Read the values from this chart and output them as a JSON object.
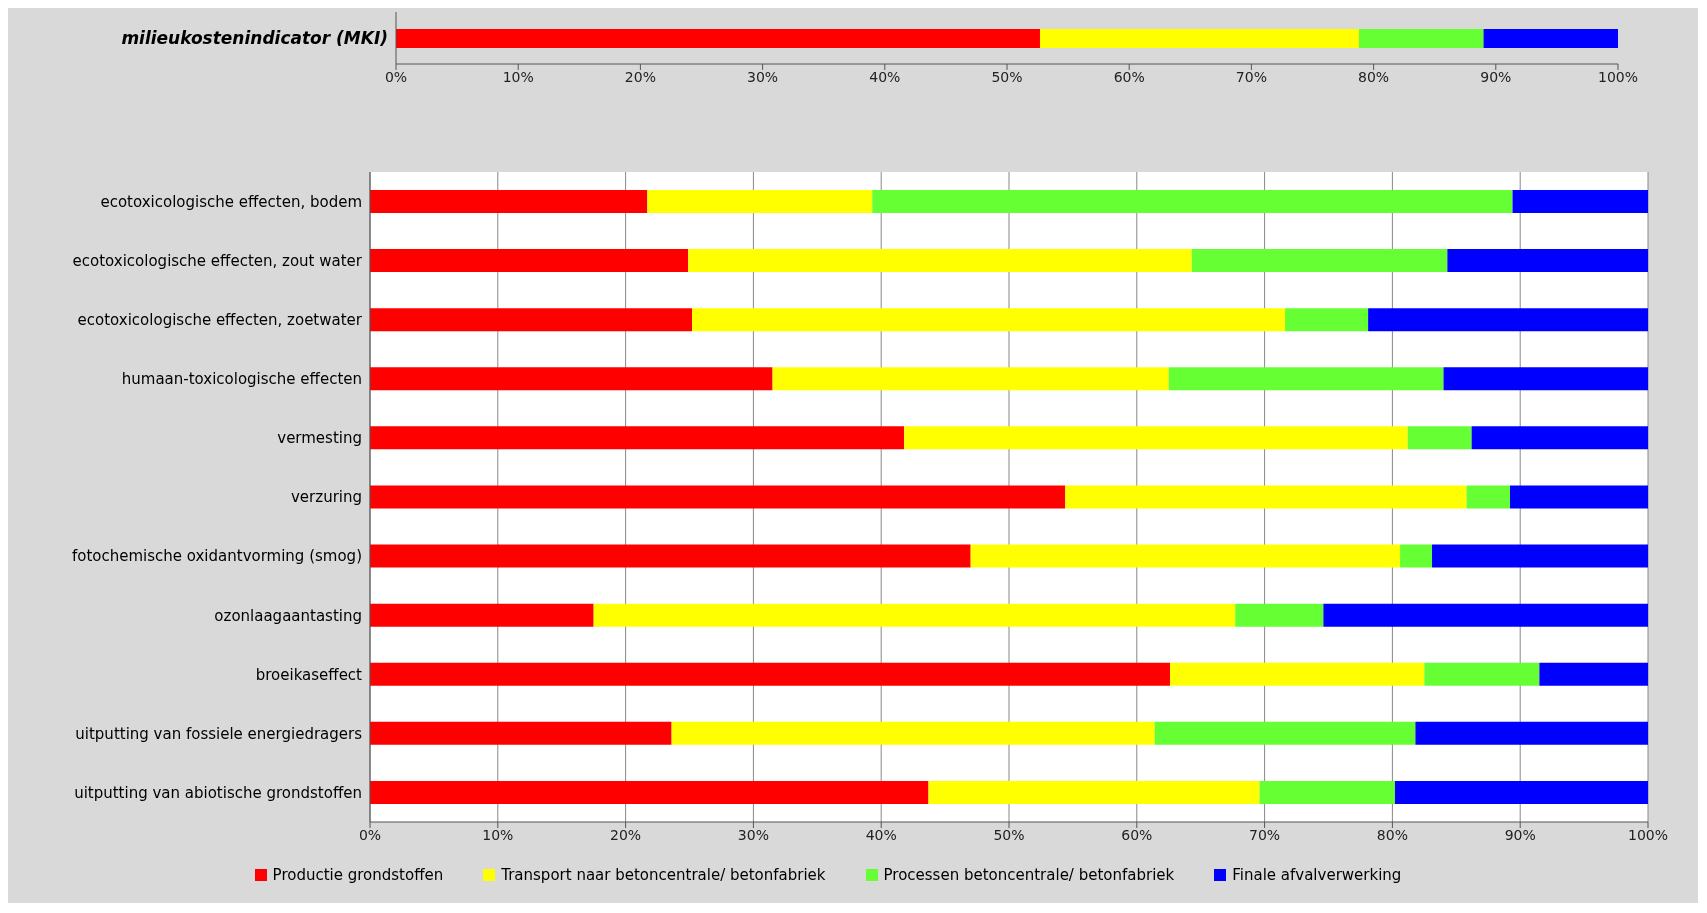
{
  "chart_data": [
    {
      "type": "bar",
      "orientation": "horizontal",
      "stacked": true,
      "categories": [
        "milieukostenindicator (MKI)"
      ],
      "series": [
        {
          "color": "#ff0000",
          "values": [
            52.7
          ]
        },
        {
          "color": "#ffff00",
          "values": [
            26.1
          ]
        },
        {
          "color": "#66ff33",
          "values": [
            10.2
          ]
        },
        {
          "color": "#0000ff",
          "values": [
            11.0
          ]
        }
      ],
      "xlim": [
        0,
        100
      ],
      "xticks": [
        {
          "value": 0,
          "label": "0%"
        },
        {
          "value": 10,
          "label": "10%"
        },
        {
          "value": 20,
          "label": "20%"
        },
        {
          "value": 30,
          "label": "30%"
        },
        {
          "value": 40,
          "label": "40%"
        },
        {
          "value": 50,
          "label": "50%"
        },
        {
          "value": 60,
          "label": "60%"
        },
        {
          "value": 70,
          "label": "70%"
        },
        {
          "value": 80,
          "label": "80%"
        },
        {
          "value": 90,
          "label": "90%"
        },
        {
          "value": 100,
          "label": "100%"
        }
      ],
      "grid": false,
      "legend": false
    },
    {
      "type": "bar",
      "orientation": "horizontal",
      "stacked": true,
      "categories": [
        "ecotoxicologische effecten, bodem",
        "ecotoxicologische effecten, zout water",
        "ecotoxicologische effecten, zoetwater",
        "humaan-toxicologische effecten",
        "vermesting",
        "verzuring",
        "fotochemische oxidantvorming (smog)",
        "ozonlaagaantasting",
        "broeikaseffect",
        "uitputting van fossiele energiedragers",
        "uitputting van abiotische grondstoffen"
      ],
      "series": [
        {
          "name": "Productie grondstoffen",
          "color": "#ff0000",
          "values": [
            21.7,
            24.9,
            25.2,
            31.5,
            41.8,
            54.4,
            47.0,
            17.5,
            62.6,
            23.6,
            43.7
          ]
        },
        {
          "name": "Transport naar betoncentrale/ betonfabriek",
          "color": "#ffff00",
          "values": [
            17.6,
            39.4,
            46.4,
            31.0,
            39.4,
            31.4,
            33.6,
            50.2,
            19.9,
            37.8,
            25.9
          ]
        },
        {
          "name": "Processen betoncentrale/ betonfabriek",
          "color": "#66ff33",
          "values": [
            50.1,
            20.0,
            6.5,
            21.5,
            5.0,
            3.4,
            2.5,
            6.9,
            9.0,
            20.4,
            10.6
          ]
        },
        {
          "name": "Finale afvalverwerking",
          "color": "#0000ff",
          "values": [
            10.6,
            15.7,
            21.9,
            16.0,
            13.8,
            10.8,
            16.9,
            25.4,
            8.5,
            18.2,
            19.8
          ]
        }
      ],
      "xlim": [
        0,
        100
      ],
      "xticks": [
        {
          "value": 0,
          "label": "0%"
        },
        {
          "value": 10,
          "label": "10%"
        },
        {
          "value": 20,
          "label": "20%"
        },
        {
          "value": 30,
          "label": "30%"
        },
        {
          "value": 40,
          "label": "40%"
        },
        {
          "value": 50,
          "label": "50%"
        },
        {
          "value": 60,
          "label": "60%"
        },
        {
          "value": 70,
          "label": "70%"
        },
        {
          "value": 80,
          "label": "80%"
        },
        {
          "value": 90,
          "label": "90%"
        },
        {
          "value": 100,
          "label": "100%"
        }
      ],
      "grid": "x",
      "legend": "bottom"
    }
  ]
}
